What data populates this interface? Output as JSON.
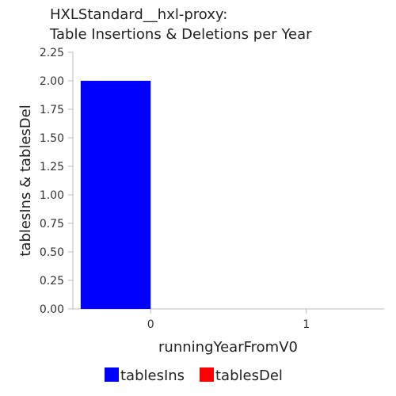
{
  "chart_data": {
    "type": "bar",
    "title_lines": [
      "HXLStandard__hxl-proxy:",
      "Table Insertions & Deletions per Year"
    ],
    "xlabel": "runningYearFromV0",
    "ylabel": "tablesIns & tablesDel",
    "categories": [
      "0",
      "1"
    ],
    "ylim": [
      0,
      2.25
    ],
    "yticks": [
      "0.00",
      "0.25",
      "0.50",
      "0.75",
      "1.00",
      "1.25",
      "1.50",
      "1.75",
      "2.00",
      "2.25"
    ],
    "grid": false,
    "legend_position": "bottom-center",
    "series": [
      {
        "name": "tablesIns",
        "color": "#0000ff",
        "values": [
          2,
          0
        ]
      },
      {
        "name": "tablesDel",
        "color": "#ff0000",
        "values": [
          0,
          0
        ]
      }
    ]
  }
}
